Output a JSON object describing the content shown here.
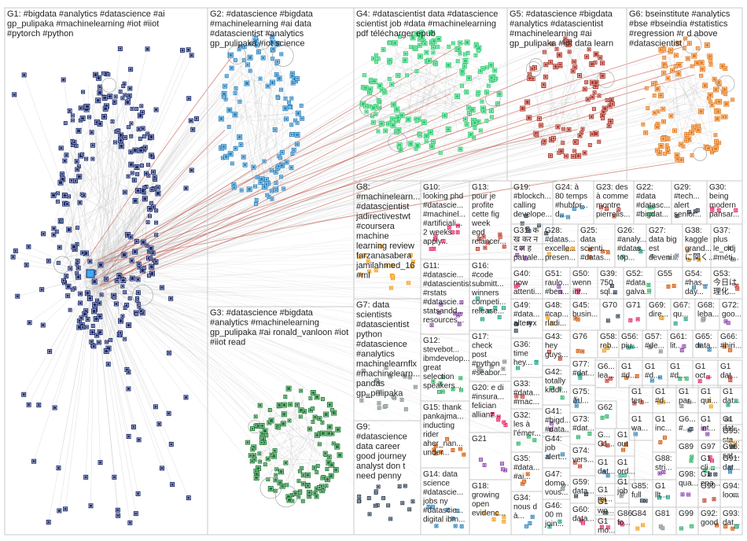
{
  "graph": {
    "description_colors": {
      "background": "#ffffff",
      "border": "#c8c8c8",
      "edge_color": "#b9b9b9",
      "highlight_edge": "#c0392b"
    },
    "groups": [
      {
        "id": "G1",
        "lines": [
          "G1: #bigdata #analytics #datascience #ai",
          "gp_pulipaka #machinelearning #iot #iiot",
          "#pytorch #python"
        ],
        "color": "#1a2a6c"
      },
      {
        "id": "G2",
        "lines": [
          "G2: #datascience #bigdata",
          "#machinelearning #ai data",
          "#datascientist #analytics",
          "gp_pulipaka #iot science"
        ],
        "color": "#2e86c1"
      },
      {
        "id": "G3",
        "lines": [
          "G3: #datascience #bigdata",
          "#analytics #machinelearning",
          "gp_pulipaka #ai ronald_vanloon #iot",
          "#iiot read"
        ],
        "color": "#1e7b34"
      },
      {
        "id": "G4",
        "lines": [
          "G4: #datascientist data #datascience",
          "scientist job #data #machinelearning",
          "pdf télécharger epub"
        ],
        "color": "#2ecc71"
      },
      {
        "id": "G5",
        "lines": [
          "G5: #datascience #bigdata",
          "#analytics #datascientist",
          "#machinelearning #ai",
          "gp_pulipaka #iot data learn"
        ],
        "color": "#b03a2e"
      },
      {
        "id": "G6",
        "lines": [
          "G6: bseinstitute #analytics",
          "#bse #bseindia #statistics",
          "#regression #r d above",
          "#datascientist"
        ],
        "color": "#e67e22"
      },
      {
        "id": "G7",
        "lines": [
          "G7: data",
          "scientists",
          "#datascientist",
          "python",
          "#datascience",
          "#analytics",
          "machinelearnflx",
          "#machinelearn...",
          "pandas",
          "gp_pulipaka"
        ]
      },
      {
        "id": "G8",
        "lines": [
          "G8:",
          "#machinelearn...",
          "#datascientist",
          "jadirectivestwt",
          "#coursera",
          "machine",
          "learning review",
          "farzanasabera",
          "jamilahmed_16",
          "#ml"
        ]
      },
      {
        "id": "G9",
        "lines": [
          "G9:",
          "#datascience",
          "data career",
          "good journey",
          "analyst don t",
          "need penny"
        ]
      },
      {
        "id": "G10",
        "lines": [
          "G10:",
          "looking phd",
          "#datascie...",
          "#machinel...",
          "#artificiali...",
          "2 weeks",
          "apply..."
        ]
      },
      {
        "id": "G11",
        "lines": [
          "G11:",
          "#datascie...",
          "#datascientist",
          "#rstats",
          "#datascie...",
          "statsandd...",
          "resources..."
        ]
      },
      {
        "id": "G12",
        "lines": [
          "G12:",
          "stevebot...",
          "ibmdevelop...",
          "great",
          "selection",
          "speakers..."
        ]
      },
      {
        "id": "G13",
        "lines": [
          "G13:",
          "pour je",
          "profite",
          "cette fig",
          "week",
          "egd",
          "relancer..."
        ]
      },
      {
        "id": "G14",
        "lines": [
          "G14: data",
          "science",
          "#datascie...",
          "jobs ny",
          "#datascie...",
          "digital ibm..."
        ]
      },
      {
        "id": "G15",
        "lines": [
          "G15: thank",
          "pankajma...",
          "inducting",
          "rider",
          "aher_nan...",
          "under..."
        ]
      },
      {
        "id": "G16",
        "lines": [
          "G16:",
          "#code",
          "submitt...",
          "winners",
          "competi...",
          "release..."
        ]
      },
      {
        "id": "G17",
        "lines": [
          "G17:",
          "check",
          "post",
          "#python",
          "#seabor..."
        ]
      },
      {
        "id": "G18",
        "lines": [
          "G18:",
          "growing",
          "open",
          "evidenc..."
        ]
      },
      {
        "id": "G19",
        "lines": [
          "G19:",
          "#blockch...",
          "calling",
          "develope..."
        ]
      },
      {
        "id": "G20",
        "lines": [
          "G20: e di",
          "#insura...",
          "felician",
          "allianz..."
        ]
      },
      {
        "id": "G21",
        "lines": [
          "G21"
        ]
      },
      {
        "id": "G22",
        "lines": [
          "G22:",
          "#data",
          "#datasc...",
          "#bigdat..."
        ]
      },
      {
        "id": "G23",
        "lines": [
          "G23: des",
          "à comme",
          "montre",
          "pierrelis..."
        ]
      },
      {
        "id": "G24",
        "lines": [
          "G24: à",
          "80 temps",
          "#hubfor...",
          "d..."
        ]
      },
      {
        "id": "G25",
        "lines": [
          "G25:",
          "data",
          "scienti...",
          "#datas..."
        ]
      },
      {
        "id": "G26",
        "lines": [
          "G26:",
          "#analy...",
          "#datas...",
          "top..."
        ]
      },
      {
        "id": "G27",
        "lines": [
          "G27:",
          "data big",
          "est",
          "deveni..."
        ]
      },
      {
        "id": "G28",
        "lines": [
          "G28:",
          "#datas...",
          "excelle...",
          "presen..."
        ]
      },
      {
        "id": "G29",
        "lines": [
          "G29:",
          "#tech...",
          "alert",
          "senior..."
        ]
      },
      {
        "id": "G30",
        "lines": [
          "G30:",
          "being",
          "modern",
          "pansar..."
        ]
      },
      {
        "id": "G31",
        "lines": [
          "G31: क",
          "ख कर न",
          "द ल ह",
          "patrale..."
        ]
      },
      {
        "id": "G32",
        "lines": [
          "G32:",
          "les à",
          "l'émer..."
        ]
      },
      {
        "id": "G33",
        "lines": [
          "G33:",
          "#data...",
          "#mac..."
        ]
      },
      {
        "id": "G34",
        "lines": [
          "G34:",
          "nous d",
          "à..."
        ]
      },
      {
        "id": "G35",
        "lines": [
          "G35:",
          "#data...",
          "#ai..."
        ]
      },
      {
        "id": "G36",
        "lines": [
          "G36:",
          "time",
          "hey..."
        ]
      },
      {
        "id": "G37",
        "lines": [
          "G37:",
          "plus",
          "le_cidj",
          "#méti..."
        ]
      },
      {
        "id": "G38",
        "lines": [
          "G38:",
          "kaggle",
          "grand...",
          "に関く..."
        ]
      },
      {
        "id": "G39",
        "lines": [
          "G39:",
          "750",
          "sql..."
        ]
      },
      {
        "id": "G40",
        "lines": [
          "G40:",
          "now",
          "attenti..."
        ]
      },
      {
        "id": "G41",
        "lines": [
          "G41:",
          "#bigd...",
          "#data..."
        ]
      },
      {
        "id": "G42",
        "lines": [
          "G42:",
          "totally",
          "kiddi..."
        ]
      },
      {
        "id": "G43",
        "lines": [
          "G43:",
          "hey",
          "guys..."
        ]
      },
      {
        "id": "G44",
        "lines": [
          "G44:",
          "job",
          "alert..."
        ]
      },
      {
        "id": "G45",
        "lines": [
          "G45:",
          "busin..."
        ]
      },
      {
        "id": "G46",
        "lines": [
          "G46:",
          "00 m",
          "join..."
        ]
      },
      {
        "id": "G47",
        "lines": [
          "G47:",
          "domo...",
          "vous..."
        ]
      },
      {
        "id": "G48",
        "lines": [
          "G48:",
          "#cap...",
          "rladi..."
        ]
      },
      {
        "id": "G49",
        "lines": [
          "G49:",
          "#data...",
          "alteryx"
        ]
      },
      {
        "id": "G50",
        "lines": [
          "G50:",
          "wenn",
          "ihr..."
        ]
      },
      {
        "id": "G51",
        "lines": [
          "G51:",
          "raulo...",
          "#ben..."
        ]
      },
      {
        "id": "G52",
        "lines": [
          "G52:",
          "#data",
          "galva..."
        ]
      },
      {
        "id": "G53",
        "lines": [
          "G53:",
          "今日は",
          "理化..."
        ]
      },
      {
        "id": "G54",
        "lines": [
          "G54:",
          "#has...",
          "day..."
        ]
      },
      {
        "id": "G55",
        "lines": [
          "G55"
        ]
      },
      {
        "id": "G56",
        "lines": [
          "G56:",
          "piu..."
        ]
      },
      {
        "id": "G57",
        "lines": [
          "G57:",
          "#de..."
        ]
      },
      {
        "id": "G58",
        "lines": [
          "G58:",
          "reb..."
        ]
      },
      {
        "id": "G59",
        "lines": [
          "G59:",
          "data..."
        ]
      },
      {
        "id": "G60",
        "lines": [
          "G60:",
          "data..."
        ]
      },
      {
        "id": "G61",
        "lines": [
          "G61:",
          "lit..."
        ]
      },
      {
        "id": "G62",
        "lines": [
          "G62"
        ]
      },
      {
        "id": "G63",
        "lines": [
          "G6...",
          "lea..."
        ]
      },
      {
        "id": "G65",
        "lines": [
          "G65:",
          "data..."
        ]
      },
      {
        "id": "G66",
        "lines": [
          "G66:",
          "#hiri..."
        ]
      },
      {
        "id": "G67",
        "lines": [
          "G67:",
          "qu..."
        ]
      },
      {
        "id": "G68",
        "lines": [
          "G68:",
          "leba..."
        ]
      },
      {
        "id": "G69",
        "lines": [
          "G69:",
          "dire..."
        ]
      },
      {
        "id": "G70",
        "lines": [
          "G70"
        ]
      },
      {
        "id": "G71",
        "lines": [
          "G71"
        ]
      },
      {
        "id": "G72",
        "lines": [
          "G72:",
          "goo..."
        ]
      },
      {
        "id": "G73",
        "lines": [
          "G73:",
          "#dat..."
        ]
      },
      {
        "id": "G74",
        "lines": [
          "G74:",
          "vers..."
        ]
      },
      {
        "id": "G75",
        "lines": [
          "G75:",
          "อัป..."
        ]
      },
      {
        "id": "G76",
        "lines": [
          "G76"
        ]
      },
      {
        "id": "G77",
        "lines": [
          "G77:",
          "#dat..."
        ]
      },
      {
        "id": "G81",
        "lines": [
          "G81"
        ]
      },
      {
        "id": "G84",
        "lines": [
          "G84"
        ]
      },
      {
        "id": "G85",
        "lines": [
          "G85:",
          "full"
        ]
      },
      {
        "id": "G86",
        "lines": [
          "G86:",
          "fo..."
        ]
      },
      {
        "id": "G88",
        "lines": [
          "G88:",
          "stri..."
        ]
      },
      {
        "id": "G89",
        "lines": [
          "G89"
        ]
      },
      {
        "id": "G90",
        "lines": [
          "G90"
        ]
      },
      {
        "id": "G91",
        "lines": [
          "G91:",
          "dat..."
        ]
      },
      {
        "id": "G92",
        "lines": [
          "G92:",
          "good"
        ]
      },
      {
        "id": "G93",
        "lines": [
          "G93:",
          "dat..."
        ]
      },
      {
        "id": "G94",
        "lines": [
          "G94:",
          "loo..."
        ]
      },
      {
        "id": "G95",
        "lines": [
          "G95:",
          "sta..."
        ]
      },
      {
        "id": "G96",
        "lines": [
          "G96:",
          "sat..."
        ]
      },
      {
        "id": "G97",
        "lines": [
          "G97"
        ]
      },
      {
        "id": "G98",
        "lines": [
          "G98:",
          "qua..."
        ]
      },
      {
        "id": "G99",
        "lines": [
          "G99"
        ]
      },
      {
        "id": "Gx1",
        "lines": [
          "G...",
          "G1..."
        ]
      },
      {
        "id": "Gx2",
        "lines": [
          "G1",
          "dat..."
        ]
      },
      {
        "id": "Gx3",
        "lines": [
          "G1",
          "out"
        ]
      },
      {
        "id": "Gx4",
        "lines": [
          "G1",
          "ord..."
        ]
      },
      {
        "id": "Gx5",
        "lines": [
          "G1",
          "job"
        ]
      },
      {
        "id": "Gx6",
        "lines": [
          "G1",
          "mi..."
        ]
      },
      {
        "id": "Gx7",
        "lines": [
          "G1",
          "wo..."
        ]
      },
      {
        "id": "Gx8",
        "lines": [
          "G1",
          "mo..."
        ]
      },
      {
        "id": "Gx9",
        "lines": [
          "G6...",
          "pr...",
          "#m..."
        ]
      },
      {
        "id": "Gx10",
        "lines": [
          "G1",
          "#d..."
        ]
      },
      {
        "id": "Gx11",
        "lines": [
          "G1",
          "ten..."
        ]
      },
      {
        "id": "Gx12",
        "lines": [
          "G1",
          "wa..."
        ]
      },
      {
        "id": "Gx13",
        "lines": [
          "G1",
          "inc..."
        ]
      },
      {
        "id": "Gx14",
        "lines": [
          "G1",
          "llt..."
        ]
      },
      {
        "id": "Gx15",
        "lines": [
          "G1",
          "par..."
        ]
      },
      {
        "id": "Gx16",
        "lines": [
          "G1",
          "qui..."
        ]
      },
      {
        "id": "Gx17",
        "lines": [
          "G1",
          "ena..."
        ]
      },
      {
        "id": "Gx18",
        "lines": [
          "G1",
          "oct..."
        ]
      },
      {
        "id": "Gx19",
        "lines": [
          "G1",
          "int..."
        ]
      },
      {
        "id": "Gx20",
        "lines": [
          "G1",
          "cli..."
        ]
      },
      {
        "id": "Gx21",
        "lines": [
          "G1",
          "dat..."
        ]
      },
      {
        "id": "Gx22",
        "lines": [
          "G1",
          "#d..."
        ]
      },
      {
        "id": "Gx23",
        "lines": [
          "G1",
          "#d..."
        ]
      },
      {
        "id": "Gx24",
        "lines": [
          "G1",
          "dat..."
        ]
      },
      {
        "id": "Gx25",
        "lines": [
          "G1",
          "dat..."
        ]
      },
      {
        "id": "Gx26",
        "lines": [
          "G1",
          "#d..."
        ]
      },
      {
        "id": "Gx27",
        "lines": [
          "G6...",
          "#..."
        ]
      }
    ]
  }
}
